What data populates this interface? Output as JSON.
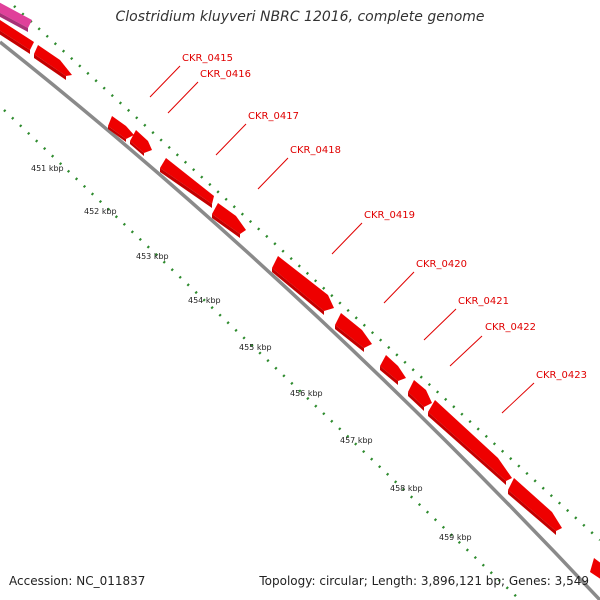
{
  "title": "Clostridium kluyveri NBRC 12016, complete genome",
  "footer": {
    "accession": "Accession: NC_011837",
    "summary": "Topology: circular; Length: 3,896,121 bp; Genes: 3,549"
  },
  "colors": {
    "gene": "#ee0000",
    "gene_side": "#c40000",
    "prior_gene": "#e0409a",
    "backbone": "#8a8a8a",
    "tick_dots": "#2e8b2e",
    "leader_line": "#e00000",
    "gene_label": "#e00000"
  },
  "scale_ticks_kbp": [
    451,
    452,
    453,
    454,
    455,
    456,
    457,
    458,
    459
  ],
  "scale_tick_labels": [
    "451 kbp",
    "452 kbp",
    "453 kbp",
    "454 kbp",
    "455 kbp",
    "456 kbp",
    "457 kbp",
    "458 kbp",
    "459 kbp"
  ],
  "gene_labels": [
    "CKR_0415",
    "CKR_0416",
    "CKR_0417",
    "CKR_0418",
    "CKR_0419",
    "CKR_0420",
    "CKR_0421",
    "CKR_0422",
    "CKR_0423"
  ]
}
